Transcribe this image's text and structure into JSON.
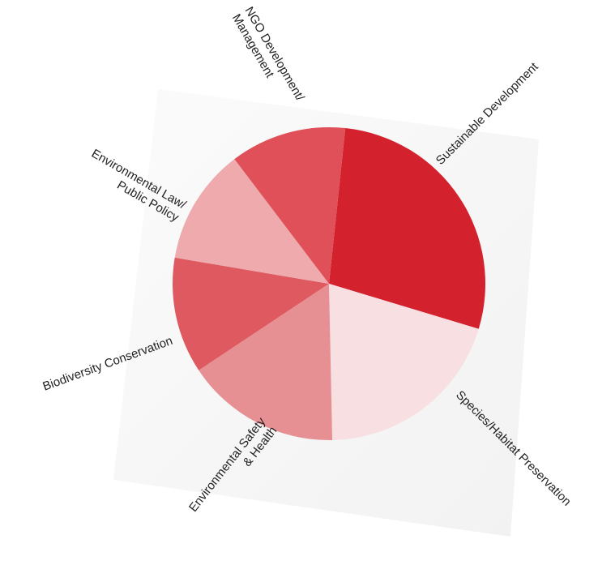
{
  "chart_data": {
    "type": "pie",
    "title": "",
    "slices": [
      {
        "label": "Sustainable Development",
        "lines": [
          "Sustainable Development"
        ],
        "value": 28,
        "color": "#d3222d"
      },
      {
        "label": "Species/Habitat Preservation",
        "lines": [
          "Species/Habitat Preservation"
        ],
        "value": 20,
        "color": "#f8e0e2"
      },
      {
        "label": "Environmental Safety & Health",
        "lines": [
          "Environmental Safety",
          "& Health"
        ],
        "value": 16,
        "color": "#e79094"
      },
      {
        "label": "Biodiversity Conservation",
        "lines": [
          "Biodiversity Conservation"
        ],
        "value": 12,
        "color": "#de5960"
      },
      {
        "label": "Environmental Law/ Public Policy",
        "lines": [
          "Environmental Law/",
          "Public Policy"
        ],
        "value": 12,
        "color": "#eeaaac"
      },
      {
        "label": "NGO Development/ Management",
        "lines": [
          "NGO Development/",
          "Management"
        ],
        "value": 12,
        "color": "#df5058"
      }
    ]
  }
}
